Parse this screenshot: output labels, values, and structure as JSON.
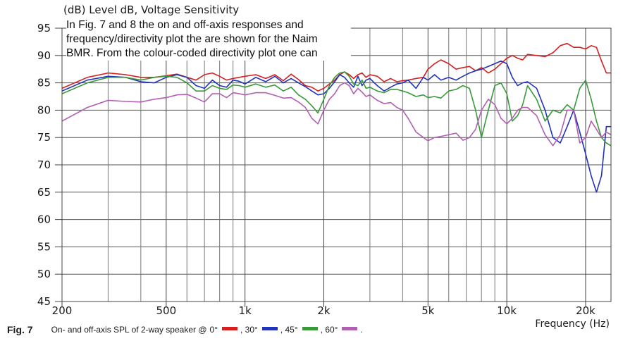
{
  "chart_data": {
    "type": "line",
    "title": "(dB)  Level dB, Voltage Sensitivity",
    "xlabel": "Frequency  (Hz)",
    "ylabel": "",
    "x_scale": "log",
    "xlim": [
      200,
      25000
    ],
    "ylim": [
      45,
      95
    ],
    "grid": true,
    "x_ticks": [
      {
        "value": 200,
        "label": "200"
      },
      {
        "value": 500,
        "label": "500"
      },
      {
        "value": 1000,
        "label": "1k"
      },
      {
        "value": 2000,
        "label": "2k"
      },
      {
        "value": 5000,
        "label": "5k"
      },
      {
        "value": 10000,
        "label": "10k"
      },
      {
        "value": 20000,
        "label": "20k"
      }
    ],
    "x_minor": [
      300,
      400,
      600,
      700,
      800,
      900,
      3000,
      4000,
      6000,
      7000,
      8000,
      9000
    ],
    "y_ticks": [
      45,
      50,
      55,
      60,
      65,
      70,
      75,
      80,
      85,
      90,
      95
    ],
    "annotation": [
      "In Fig. 7 and 8 the on and off-axis responses and",
      "frequency/directivity plot the are shown for the Naim",
      "BMR. From the colour-coded directivity plot one can"
    ],
    "series": [
      {
        "name": "0°",
        "color": "#d42020",
        "x": [
          200,
          250,
          300,
          350,
          400,
          450,
          500,
          550,
          600,
          650,
          700,
          750,
          800,
          850,
          900,
          950,
          1000,
          1100,
          1200,
          1300,
          1400,
          1500,
          1600,
          1700,
          1800,
          1900,
          2000,
          2100,
          2200,
          2300,
          2400,
          2500,
          2600,
          2700,
          2800,
          2900,
          3000,
          3200,
          3400,
          3600,
          3800,
          4000,
          4200,
          4500,
          4800,
          5000,
          5300,
          5600,
          6000,
          6400,
          6800,
          7200,
          7600,
          8000,
          8500,
          9000,
          9500,
          10000,
          10500,
          11000,
          11500,
          12000,
          13000,
          14000,
          15000,
          16000,
          17000,
          18000,
          19000,
          20000,
          21000,
          22000,
          23000,
          24000,
          25000
        ],
        "y": [
          84,
          86,
          86.8,
          86.5,
          86,
          86,
          86.3,
          86.6,
          86,
          85.5,
          86.5,
          86.8,
          86.2,
          85.5,
          85.8,
          86,
          86.2,
          86.5,
          85.8,
          86.5,
          85.4,
          86.6,
          85.6,
          84.5,
          84.2,
          83.5,
          84,
          84.8,
          85.5,
          86.5,
          87,
          86.5,
          85.8,
          86.5,
          86.8,
          86,
          86.5,
          86.2,
          85.2,
          85.8,
          85.2,
          85.4,
          85.5,
          85.8,
          86,
          87.5,
          88.5,
          89.2,
          88.5,
          87.5,
          87.8,
          88,
          87.2,
          87.8,
          86.8,
          87.5,
          88.5,
          89.5,
          90,
          89.5,
          89.2,
          90.2,
          90,
          89.8,
          90.5,
          91.8,
          92.2,
          91.5,
          91.5,
          91.2,
          91.8,
          91.5,
          89,
          86.8,
          86.8
        ]
      },
      {
        "name": "30°",
        "color": "#2233bb",
        "x": [
          200,
          250,
          300,
          350,
          400,
          450,
          500,
          550,
          600,
          650,
          700,
          750,
          800,
          850,
          900,
          950,
          1000,
          1100,
          1200,
          1300,
          1400,
          1500,
          1600,
          1700,
          1800,
          1900,
          2000,
          2100,
          2200,
          2300,
          2400,
          2500,
          2600,
          2700,
          2800,
          2900,
          3000,
          3200,
          3400,
          3600,
          3800,
          4000,
          4200,
          4500,
          4800,
          5000,
          5300,
          5600,
          6000,
          6400,
          6800,
          7200,
          7600,
          8000,
          8500,
          9000,
          9500,
          10000,
          10500,
          11000,
          11500,
          12000,
          13000,
          14000,
          15000,
          16000,
          17000,
          18000,
          19000,
          20000,
          21000,
          22000,
          23000,
          24000,
          25000
        ],
        "y": [
          83.5,
          85.5,
          86.2,
          86,
          85.2,
          85,
          86,
          86.5,
          86,
          84.5,
          84,
          85.5,
          84.5,
          84.2,
          85.5,
          85.3,
          84.8,
          86,
          85.2,
          86.2,
          85,
          85.8,
          85,
          84.3,
          83.5,
          82.8,
          83,
          84,
          85.2,
          86.5,
          86,
          85,
          84.2,
          86.2,
          84.5,
          85.5,
          85.8,
          84.5,
          83.5,
          84.2,
          84.8,
          85,
          85.5,
          84,
          86,
          85.5,
          86.5,
          85.5,
          86,
          85.5,
          86.2,
          86.8,
          87.2,
          87.5,
          88,
          88.5,
          89,
          88.5,
          86,
          84.5,
          85,
          85.2,
          84,
          80,
          75,
          74,
          77,
          80,
          76,
          72,
          68,
          65,
          68,
          77,
          77
        ]
      },
      {
        "name": "45°",
        "color": "#3a9a3a",
        "x": [
          200,
          250,
          300,
          350,
          400,
          450,
          500,
          550,
          600,
          650,
          700,
          750,
          800,
          850,
          900,
          950,
          1000,
          1100,
          1200,
          1300,
          1400,
          1500,
          1600,
          1700,
          1800,
          1900,
          2000,
          2100,
          2200,
          2300,
          2400,
          2500,
          2600,
          2700,
          2800,
          2900,
          3000,
          3200,
          3400,
          3600,
          3800,
          4000,
          4200,
          4500,
          4800,
          5000,
          5300,
          5600,
          6000,
          6400,
          6800,
          7200,
          7600,
          8000,
          8500,
          9000,
          9500,
          10000,
          10500,
          11000,
          11500,
          12000,
          13000,
          14000,
          15000,
          16000,
          17000,
          18000,
          19000,
          20000,
          21000,
          22000,
          23000,
          24000,
          25000
        ],
        "y": [
          83,
          85,
          86,
          86,
          85.5,
          86,
          86.2,
          86,
          85,
          83.5,
          83.5,
          84.5,
          84,
          83.8,
          84.6,
          84.5,
          84.2,
          84.8,
          84.2,
          84.6,
          83.5,
          84.2,
          82.8,
          82,
          80.8,
          79.5,
          82,
          84.5,
          86,
          86.8,
          87,
          86.2,
          84.8,
          84.5,
          85.5,
          84,
          84.2,
          83.5,
          83.2,
          83.8,
          83.8,
          83.5,
          83.2,
          82.5,
          82.8,
          82.3,
          82.5,
          82.2,
          83.5,
          83.8,
          84.5,
          84,
          80,
          75,
          80,
          84.5,
          85,
          83,
          78,
          79,
          81,
          84.5,
          82,
          78,
          80,
          79.5,
          81,
          80,
          84,
          85.5,
          82,
          78,
          75,
          74,
          73.5
        ]
      },
      {
        "name": "60°",
        "color": "#b060b0",
        "x": [
          200,
          250,
          300,
          350,
          400,
          450,
          500,
          550,
          600,
          650,
          700,
          750,
          800,
          850,
          900,
          950,
          1000,
          1100,
          1200,
          1300,
          1400,
          1500,
          1600,
          1700,
          1800,
          1900,
          2000,
          2100,
          2200,
          2300,
          2400,
          2500,
          2600,
          2700,
          2800,
          2900,
          3000,
          3200,
          3400,
          3600,
          3800,
          4000,
          4200,
          4500,
          4800,
          5000,
          5300,
          5600,
          6000,
          6400,
          6800,
          7200,
          7600,
          8000,
          8500,
          9000,
          9500,
          10000,
          10500,
          11000,
          11500,
          12000,
          13000,
          14000,
          15000,
          16000,
          17000,
          18000,
          19000,
          20000,
          21000,
          22000,
          23000,
          24000,
          25000
        ],
        "y": [
          78,
          80.5,
          81.8,
          81.6,
          81.5,
          82,
          82.3,
          82.8,
          82.9,
          82.2,
          81.5,
          83,
          83,
          82.3,
          83.2,
          83,
          82.8,
          83.2,
          83.2,
          82.7,
          82.2,
          82.3,
          81.5,
          80.5,
          78.5,
          77.5,
          80,
          82,
          83,
          84.5,
          85,
          84.5,
          83,
          84,
          83.3,
          82.5,
          82.8,
          81.8,
          81.2,
          81.4,
          80.5,
          80,
          78.5,
          76,
          75,
          74.4,
          75,
          75.2,
          75.5,
          75.8,
          74.5,
          75,
          76.5,
          80,
          82,
          81,
          78.5,
          77.5,
          78.5,
          80,
          80.5,
          80.5,
          79,
          75.5,
          73.5,
          75.5,
          80,
          80,
          74,
          75,
          78,
          76.5,
          75,
          76,
          75.5
        ]
      }
    ]
  },
  "caption": {
    "fig": "Fig. 7",
    "text": "On- and off-axis SPL of 2-way speaker @",
    "labels": [
      "0°",
      ", 30°",
      ", 45°",
      ", 60°",
      "."
    ]
  }
}
